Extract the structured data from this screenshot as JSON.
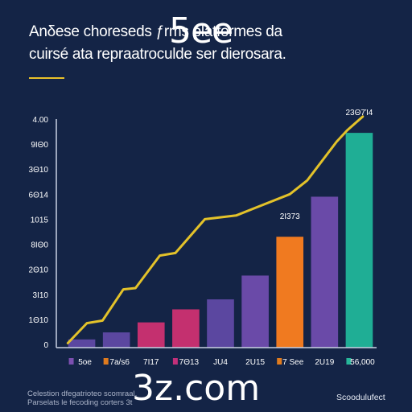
{
  "colors": {
    "background": "#142446",
    "accent": "#e9c12a",
    "axis": "#c9d2e4",
    "line": "#e3c22a"
  },
  "header": {
    "title_lines": [
      "Anδese choreseds ƒ",
      "cuirsé ata repraatroculde ser dierosara."
    ],
    "title_suffix": "rms platformes da",
    "overlay_text": "5ee"
  },
  "watermark": {
    "text": "3z.com"
  },
  "footer": {
    "left_lines": [
      "Celestion dfegatrioteo scomraal,",
      "Parselats le fecoding corters 3t"
    ],
    "right_text": "Scoodulufect"
  },
  "chart_data": {
    "type": "bar",
    "title": "",
    "xlabel": "",
    "ylabel": "",
    "y_tick_labels": [
      "4.00",
      "9ΙΘ0",
      "3Θ10",
      "6Θ14",
      "1015",
      "8ΙΘ0",
      "2Θ10",
      "3Ι10",
      "1Θ10",
      "0"
    ],
    "ylim": [
      0,
      9
    ],
    "categories": [
      "5oe",
      "7a/s6",
      "7Ι17",
      "7Θ13",
      "JU4",
      "2U15",
      "7 See",
      "2U19",
      "56,000"
    ],
    "category_swatch": [
      "#7b4fb0",
      "#e07b1e",
      "",
      "#c2307a",
      "",
      "",
      "#e07b1e",
      "",
      "#27b79a"
    ],
    "values": [
      0.2,
      0.48,
      0.88,
      1.4,
      1.8,
      2.75,
      4.3,
      5.9,
      8.45
    ],
    "bar_colors": [
      "#5b47a0",
      "#5b47a0",
      "#c4306f",
      "#c4306f",
      "#5b47a0",
      "#6a4aa8",
      "#f07a20",
      "#6a4aa8",
      "#1fae95"
    ],
    "data_labels": [
      {
        "index": 6,
        "text": "2Ι373"
      },
      {
        "index": 8,
        "text": "23Θ7Ί4"
      }
    ],
    "line_series": {
      "x": [
        -0.4,
        0.15,
        0.6,
        1.2,
        1.55,
        2.25,
        2.7,
        3.55,
        4.45,
        5.0,
        6.0,
        6.5,
        7.35,
        7.65,
        8.1
      ],
      "y": [
        0.05,
        0.85,
        0.95,
        2.2,
        2.25,
        3.55,
        3.65,
        5.0,
        5.15,
        5.45,
        6.0,
        6.55,
        8.1,
        8.55,
        9.1
      ]
    },
    "grid": false,
    "legend": "none"
  }
}
